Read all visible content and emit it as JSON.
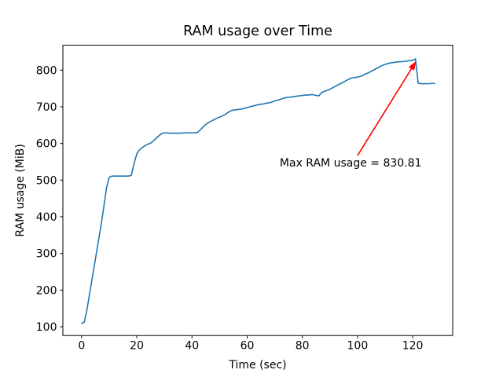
{
  "figure": {
    "background": "#ffffff"
  },
  "chart_data": {
    "type": "line",
    "title": "RAM usage over Time",
    "xlabel": "Time (sec)",
    "ylabel": "RAM usage (MiB)",
    "xticks": [
      0,
      20,
      40,
      60,
      80,
      100,
      120
    ],
    "yticks": [
      100,
      200,
      300,
      400,
      500,
      600,
      700,
      800
    ],
    "xlim": [
      -6.8,
      134.5
    ],
    "ylim": [
      76,
      868
    ],
    "grid": false,
    "legend_position": "none",
    "line_color": "#1f77b4",
    "max_ram_usage": 830.81,
    "x": [
      0,
      1,
      2,
      3,
      4,
      5,
      6,
      7,
      8,
      9,
      10,
      11,
      12,
      13,
      14,
      15,
      16,
      17,
      18,
      19,
      20,
      21,
      22,
      23,
      24,
      25,
      26,
      27,
      28,
      29,
      30,
      31,
      32,
      33,
      34,
      35,
      36,
      37,
      38,
      39,
      40,
      41,
      42,
      43,
      44,
      45,
      46,
      47,
      48,
      49,
      50,
      51,
      52,
      53,
      54,
      55,
      56,
      57,
      58,
      59,
      60,
      61,
      62,
      63,
      64,
      65,
      66,
      67,
      68,
      69,
      70,
      71,
      72,
      73,
      74,
      75,
      76,
      77,
      78,
      79,
      80,
      81,
      82,
      83,
      84,
      85,
      86,
      87,
      88,
      89,
      90,
      91,
      92,
      93,
      94,
      95,
      96,
      97,
      98,
      99,
      100,
      101,
      102,
      103,
      104,
      105,
      106,
      107,
      108,
      109,
      110,
      111,
      112,
      113,
      114,
      115,
      116,
      117,
      118,
      119,
      120,
      121,
      122,
      123,
      124,
      125,
      126,
      127,
      128
    ],
    "y": [
      109,
      113,
      150,
      195,
      240,
      285,
      330,
      375,
      425,
      478,
      508,
      511,
      511,
      511,
      511,
      511,
      511,
      511,
      513,
      545,
      572,
      583,
      589,
      594,
      598,
      601,
      607,
      614,
      621,
      627,
      629,
      629,
      628,
      628,
      628,
      628,
      628,
      629,
      629,
      629,
      629,
      629,
      630,
      637,
      645,
      652,
      657,
      661,
      665,
      669,
      672,
      675,
      679,
      684,
      689,
      691,
      692,
      693,
      694,
      696,
      698,
      700,
      702,
      704,
      706,
      707,
      708,
      710,
      711,
      713,
      716,
      718,
      720,
      723,
      725,
      726,
      727,
      728,
      729,
      730,
      731,
      732,
      732,
      733,
      733,
      731,
      730,
      739,
      742,
      745,
      748,
      752,
      756,
      760,
      764,
      768,
      772,
      776,
      779,
      780,
      781,
      783,
      786,
      790,
      793,
      797,
      801,
      805,
      809,
      813,
      816,
      818,
      820,
      821,
      822,
      823,
      823,
      824,
      825,
      826,
      827,
      830.81,
      764,
      763,
      763,
      763,
      763,
      764,
      764
    ],
    "annotation": {
      "text": "Max RAM usage = 830.81",
      "color": "#ff0000",
      "arrow_tip_xy": [
        121.2,
        824
      ],
      "arrow_tail_xy": [
        100,
        567
      ],
      "text_xy": [
        71.8,
        537
      ]
    }
  }
}
